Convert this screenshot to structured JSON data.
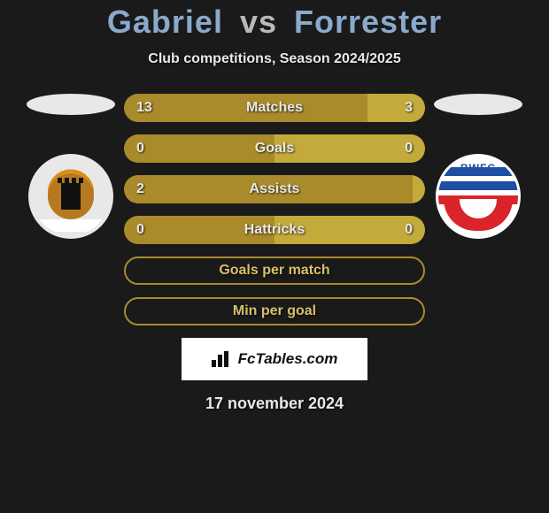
{
  "title": {
    "p1": "Gabriel",
    "vs": "vs",
    "p2": "Forrester"
  },
  "subtitle": "Club competitions, Season 2024/2025",
  "colors": {
    "left_bar": "#a98b2c",
    "right_bar": "#c4aa3a",
    "empty_border": "#a98b2c",
    "background": "#1a1a1a",
    "text": "#e8e8e8",
    "title_name": "#8aa9cc",
    "title_vs": "#b9b9b9"
  },
  "bars": [
    {
      "label": "Matches",
      "left_val": "13",
      "right_val": "3",
      "left_pct": 81,
      "right_pct": 19,
      "has_values": true
    },
    {
      "label": "Goals",
      "left_val": "0",
      "right_val": "0",
      "left_pct": 50,
      "right_pct": 50,
      "has_values": true
    },
    {
      "label": "Assists",
      "left_val": "2",
      "right_val": "",
      "left_pct": 100,
      "right_pct": 0,
      "has_values": true
    },
    {
      "label": "Hattricks",
      "left_val": "0",
      "right_val": "0",
      "left_pct": 50,
      "right_pct": 50,
      "has_values": true
    },
    {
      "label": "Goals per match",
      "has_values": false
    },
    {
      "label": "Min per goal",
      "has_values": false
    }
  ],
  "brand": "FcTables.com",
  "date": "17 november 2024",
  "crest_right_letters": "BWFC"
}
